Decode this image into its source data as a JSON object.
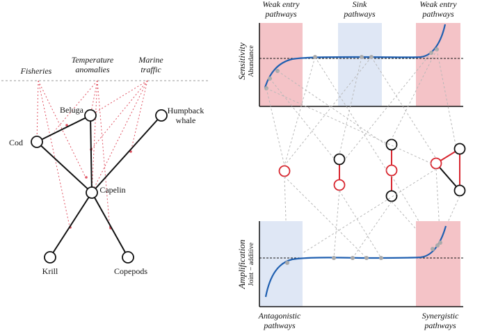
{
  "left_network": {
    "stressors": {
      "fisheries": "Fisheries",
      "temperature_line1": "Temperature",
      "temperature_line2": "anomalies",
      "marine_line1": "Marine",
      "marine_line2": "traffic"
    },
    "species": {
      "beluga": "Beluga",
      "humpback_line1": "Humpback",
      "humpback_line2": "whale",
      "cod": "Cod",
      "capelin": "Capelin",
      "krill": "Krill",
      "copepods": "Copepods"
    }
  },
  "top_panel": {
    "weak_left_line1": "Weak entry",
    "weak_left_line2": "pathways",
    "sink_line1": "Sink",
    "sink_line2": "pathways",
    "weak_right_line1": "Weak entry",
    "weak_right_line2": "pathways",
    "ylabel": "Sensitivity",
    "ysublabel": "Abundance"
  },
  "bottom_panel": {
    "ylabel": "Amplification",
    "ysublabel": "Joint − additive",
    "antagonistic_line1": "Antagonistic",
    "antagonistic_line2": "pathways",
    "synergistic_line1": "Synergistic",
    "synergistic_line2": "pathways"
  },
  "colors": {
    "red_zone": "#f4c3c7",
    "blue_zone": "#dfe7f5",
    "curve": "#1f5fb0",
    "stress_link": "#e05060",
    "red_node": "#d8262f",
    "dashed_gray": "#b8b8b8"
  }
}
